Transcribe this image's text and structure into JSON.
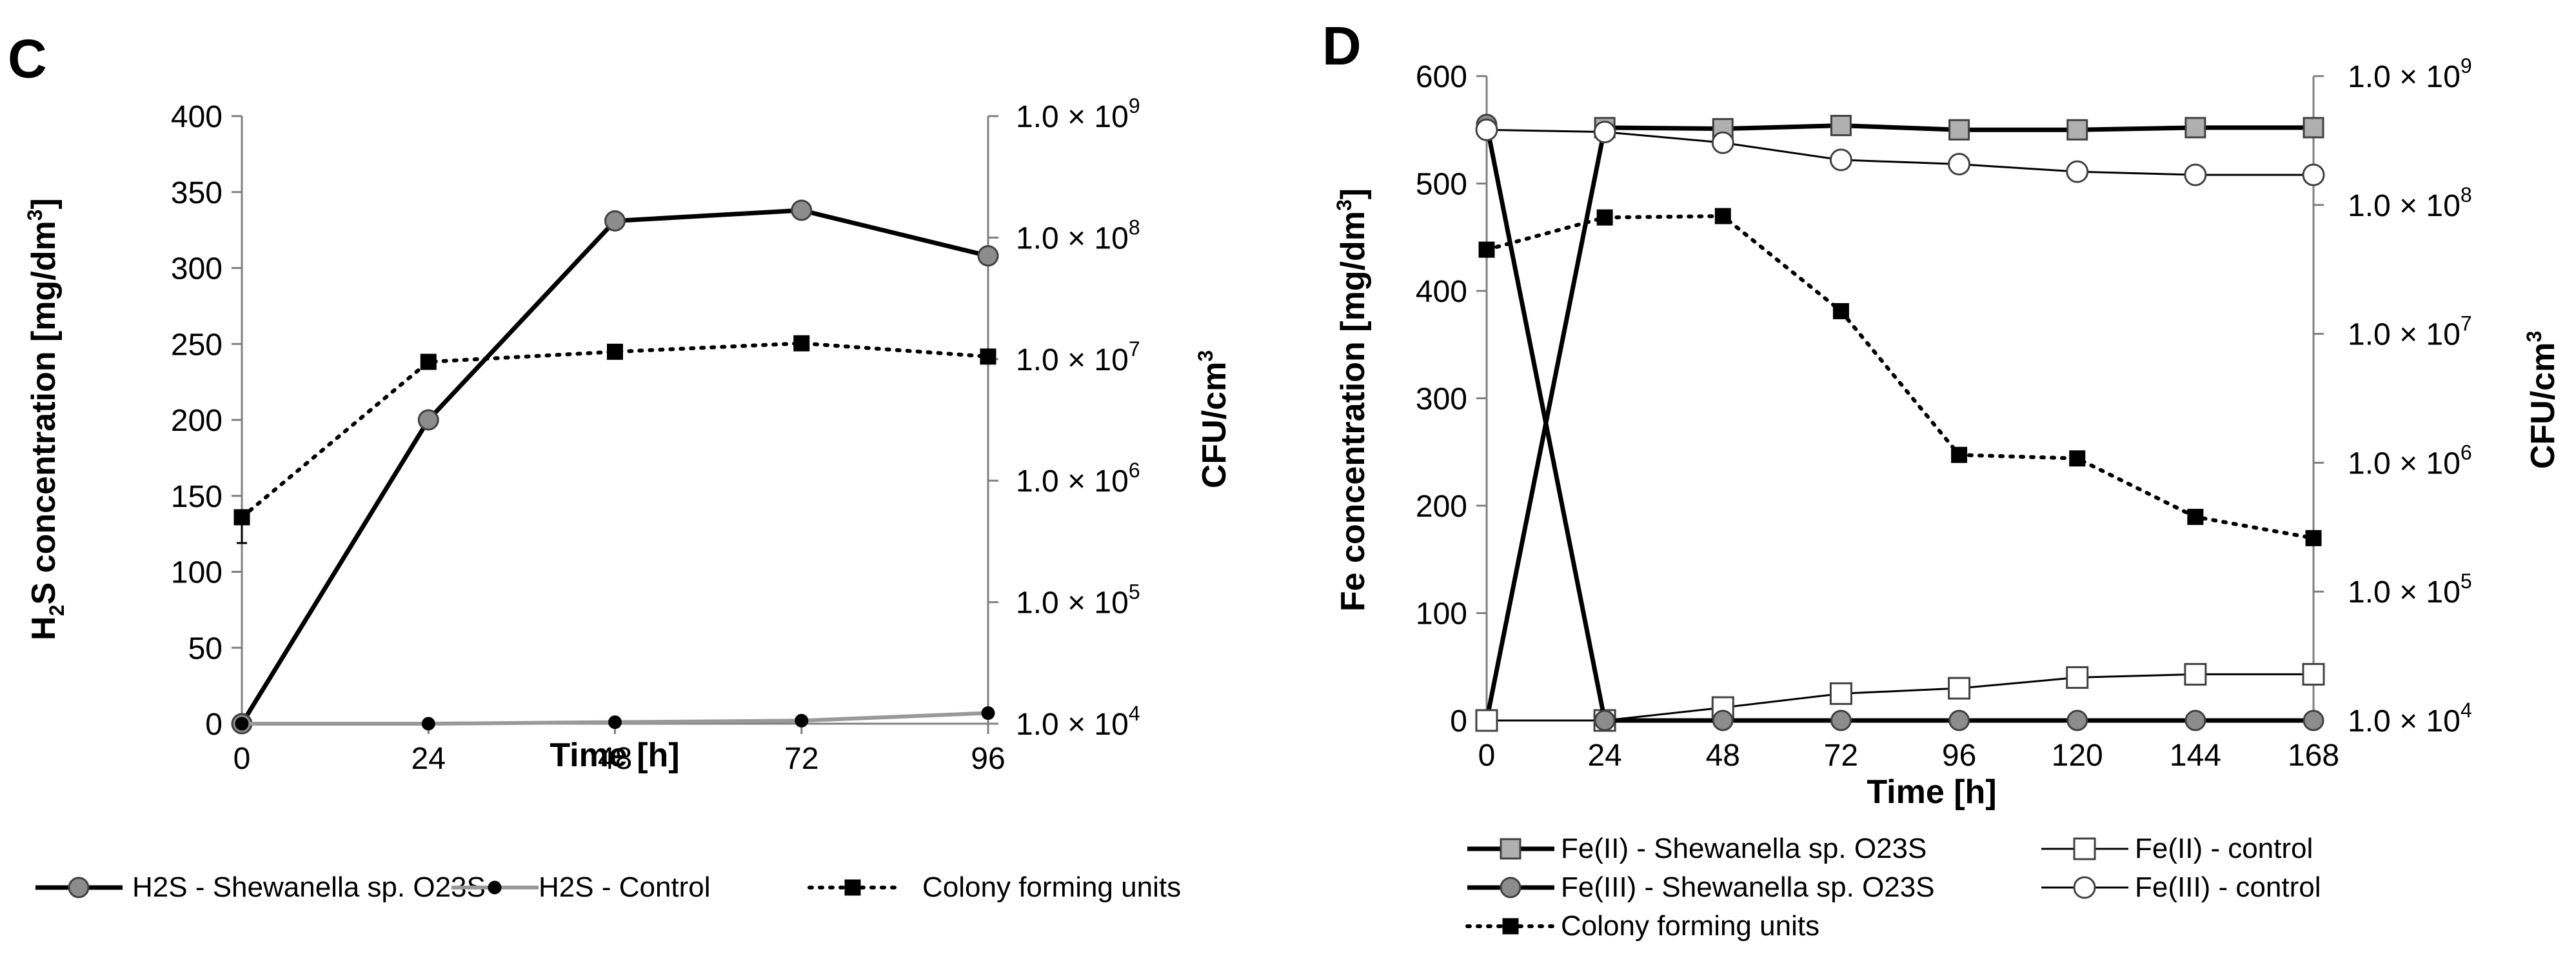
{
  "chart_data": [
    {
      "type": "line",
      "panel": "C",
      "x": [
        0,
        24,
        48,
        72,
        96
      ],
      "xlabel": "Time [h]",
      "ylabel_left": {
        "prefix": "H",
        "sub": "2",
        "mid": "S concentration [mg/dm",
        "sup": "3",
        "suffix": "]"
      },
      "ylabel_right": {
        "prefix": "CFU/cm",
        "sup": "3"
      },
      "ylim_left": [
        0,
        400
      ],
      "yticks_left": [
        0,
        50,
        100,
        150,
        200,
        250,
        300,
        350,
        400
      ],
      "ylim_right_log": [
        4,
        9
      ],
      "right_tick_base": "1.0 × 10",
      "right_tick_exponents": [
        "4",
        "5",
        "6",
        "7",
        "8",
        "9"
      ],
      "series": [
        {
          "name": "H2S - Shewanella sp. O23S",
          "axis": "left",
          "values": [
            0,
            200,
            331,
            338,
            308
          ],
          "color": "#000000",
          "marker": "circle-gray",
          "style": "solid-thick"
        },
        {
          "name": "H2S - Control",
          "axis": "left",
          "values": [
            0,
            0,
            1,
            2,
            7
          ],
          "color": "#808080",
          "marker": "circle-black-small",
          "style": "solid-gray"
        },
        {
          "name": "Colony forming units",
          "axis": "right",
          "values": [
            500000,
            9500000,
            11500000,
            13500000,
            10500000
          ],
          "color": "#000000",
          "marker": "square-black",
          "style": "dotted"
        }
      ]
    },
    {
      "type": "line",
      "panel": "D",
      "x": [
        0,
        24,
        48,
        72,
        96,
        120,
        144,
        168
      ],
      "xlabel": "Time [h]",
      "ylabel_left": {
        "prefix": "Fe concentration [mg/dm",
        "sup": "3",
        "suffix": "]"
      },
      "ylabel_right": {
        "prefix": "CFU/cm",
        "sup": "3"
      },
      "ylim_left": [
        0,
        600
      ],
      "yticks_left": [
        0,
        100,
        200,
        300,
        400,
        500,
        600
      ],
      "ylim_right_log": [
        4,
        9
      ],
      "right_tick_base": "1.0 × 10",
      "right_tick_exponents": [
        "4",
        "5",
        "6",
        "7",
        "8",
        "9"
      ],
      "series": [
        {
          "name": "Fe(II) - Shewanella sp. O23S",
          "axis": "left",
          "values": [
            0,
            552,
            551,
            554,
            550,
            550,
            552,
            552
          ],
          "color": "#000000",
          "marker": "square-gray",
          "style": "solid-thick"
        },
        {
          "name": "Fe(II) - control",
          "axis": "left",
          "values": [
            0,
            0,
            12,
            25,
            30,
            40,
            43,
            43
          ],
          "color": "#000000",
          "marker": "square-white",
          "style": "solid-thin"
        },
        {
          "name": "Fe(III) - Shewanella sp. O23S",
          "axis": "left",
          "values": [
            555,
            0,
            0,
            0,
            0,
            0,
            0,
            0
          ],
          "color": "#000000",
          "marker": "circle-gray",
          "style": "solid-thick"
        },
        {
          "name": "Fe(III) - control",
          "axis": "left",
          "values": [
            550,
            548,
            538,
            522,
            518,
            511,
            508,
            508
          ],
          "color": "#000000",
          "marker": "circle-white",
          "style": "solid-thin"
        },
        {
          "name": "Colony forming units",
          "axis": "right",
          "values": [
            45000000,
            80000000,
            82000000,
            15000000,
            1150000,
            1080000,
            380000,
            260000
          ],
          "color": "#000000",
          "marker": "square-black",
          "style": "dotted"
        }
      ]
    }
  ]
}
